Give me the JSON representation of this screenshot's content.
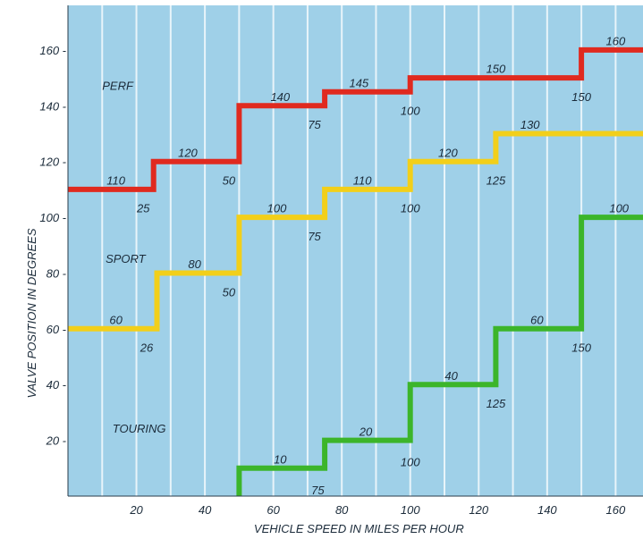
{
  "colors": {
    "plot_background": "#9fd0e8",
    "grid": "#e8f4fa",
    "perf": "#e02a1f",
    "sport": "#f2cf1a",
    "touring": "#3cb52a",
    "text": "#1b2b3a"
  },
  "chart_data": {
    "type": "line",
    "title": "",
    "xlabel": "VEHICLE SPEED IN MILES PER HOUR",
    "ylabel": "VALVE POSITION IN DEGREES",
    "xlim": [
      0,
      168
    ],
    "ylim": [
      0,
      176
    ],
    "x_ticks": [
      20,
      40,
      60,
      80,
      100,
      120,
      140,
      160
    ],
    "y_ticks": [
      20,
      40,
      60,
      80,
      100,
      120,
      140,
      160
    ],
    "x_tick_labels": [
      "20",
      "40",
      "60",
      "80",
      "100",
      "120",
      "140",
      "160"
    ],
    "y_tick_labels": [
      "20 -",
      "40 -",
      "60 -",
      "80 -",
      "100 -",
      "120 -",
      "140 -",
      "160 -"
    ],
    "grid": true,
    "series": [
      {
        "name": "PERF",
        "color": "#e02a1f",
        "step_points": [
          [
            0,
            110
          ],
          [
            25,
            110
          ],
          [
            25,
            120
          ],
          [
            50,
            120
          ],
          [
            50,
            140
          ],
          [
            75,
            140
          ],
          [
            75,
            145
          ],
          [
            100,
            145
          ],
          [
            100,
            150
          ],
          [
            150,
            150
          ],
          [
            150,
            160
          ],
          [
            168,
            160
          ]
        ],
        "value_labels": [
          {
            "text": "110",
            "x": 14,
            "y": 113
          },
          {
            "text": "120",
            "x": 35,
            "y": 123
          },
          {
            "text": "140",
            "x": 62,
            "y": 143
          },
          {
            "text": "145",
            "x": 85,
            "y": 148
          },
          {
            "text": "150",
            "x": 125,
            "y": 153
          },
          {
            "text": "160",
            "x": 160,
            "y": 163
          }
        ],
        "speed_labels": [
          {
            "text": "25",
            "x": 22,
            "y": 103
          },
          {
            "text": "50",
            "x": 47,
            "y": 113
          },
          {
            "text": "75",
            "x": 72,
            "y": 133
          },
          {
            "text": "100",
            "x": 100,
            "y": 138
          },
          {
            "text": "150",
            "x": 150,
            "y": 143
          }
        ]
      },
      {
        "name": "SPORT",
        "color": "#f2cf1a",
        "step_points": [
          [
            0,
            60
          ],
          [
            26,
            60
          ],
          [
            26,
            80
          ],
          [
            50,
            80
          ],
          [
            50,
            100
          ],
          [
            75,
            100
          ],
          [
            75,
            110
          ],
          [
            100,
            110
          ],
          [
            100,
            120
          ],
          [
            125,
            120
          ],
          [
            125,
            130
          ],
          [
            168,
            130
          ]
        ],
        "value_labels": [
          {
            "text": "60",
            "x": 14,
            "y": 63
          },
          {
            "text": "80",
            "x": 37,
            "y": 83
          },
          {
            "text": "100",
            "x": 61,
            "y": 103
          },
          {
            "text": "110",
            "x": 86,
            "y": 113
          },
          {
            "text": "120",
            "x": 111,
            "y": 123
          },
          {
            "text": "130",
            "x": 135,
            "y": 133
          }
        ],
        "speed_labels": [
          {
            "text": "26",
            "x": 23,
            "y": 53
          },
          {
            "text": "50",
            "x": 47,
            "y": 73
          },
          {
            "text": "75",
            "x": 72,
            "y": 93
          },
          {
            "text": "100",
            "x": 100,
            "y": 103
          },
          {
            "text": "125",
            "x": 125,
            "y": 113
          }
        ]
      },
      {
        "name": "TOURING",
        "color": "#3cb52a",
        "step_points": [
          [
            50,
            0
          ],
          [
            50,
            10
          ],
          [
            75,
            10
          ],
          [
            75,
            20
          ],
          [
            100,
            20
          ],
          [
            100,
            40
          ],
          [
            125,
            40
          ],
          [
            125,
            60
          ],
          [
            150,
            60
          ],
          [
            150,
            100
          ],
          [
            168,
            100
          ]
        ],
        "value_labels": [
          {
            "text": "10",
            "x": 62,
            "y": 13
          },
          {
            "text": "20",
            "x": 87,
            "y": 23
          },
          {
            "text": "40",
            "x": 112,
            "y": 43
          },
          {
            "text": "60",
            "x": 137,
            "y": 63
          },
          {
            "text": "100",
            "x": 161,
            "y": 103
          }
        ],
        "speed_labels": [
          {
            "text": "75",
            "x": 73,
            "y": 2
          },
          {
            "text": "100",
            "x": 100,
            "y": 12
          },
          {
            "text": "125",
            "x": 125,
            "y": 33
          },
          {
            "text": "150",
            "x": 150,
            "y": 53
          }
        ]
      }
    ],
    "region_labels": [
      {
        "text": "PERF",
        "x": 10,
        "y": 147
      },
      {
        "text": "SPORT",
        "x": 11,
        "y": 85
      },
      {
        "text": "TOURING",
        "x": 13,
        "y": 24
      }
    ]
  }
}
